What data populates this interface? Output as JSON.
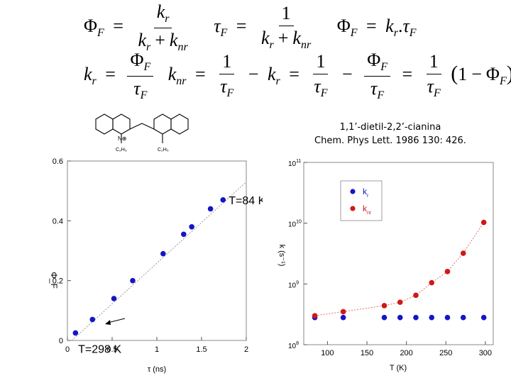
{
  "equations": {
    "phi_sym": "Φ",
    "tau_sym": "τ",
    "sub_F": "F",
    "k": "k",
    "sub_r": "r",
    "sub_nr": "nr",
    "one": "1",
    "eq": "=",
    "plus": "+",
    "minus": "−",
    "dot": ".",
    "open_paren": "(",
    "close_paren": ")"
  },
  "molecule": {
    "n_label": "N⊕",
    "left_sub": "C₂H₅",
    "right_sub": "C₂H₅"
  },
  "caption": {
    "line1": "1,1’-dietil-2,2’-cianina",
    "line2": "Chem. Phys Lett. 1986 130: 426."
  },
  "chart_data": [
    {
      "type": "scatter",
      "xlabel": "τ (ns)",
      "ylabel": "Φ_F",
      "xlim": [
        0,
        2
      ],
      "ylim": [
        0,
        0.6
      ],
      "xticks": [
        "0",
        "0.5",
        "1",
        "1.5",
        "2"
      ],
      "yticks": [
        "0",
        "0.2",
        "0.4",
        "0.6"
      ],
      "series": [
        {
          "color": "#1515c8",
          "x": [
            0.09,
            0.28,
            0.52,
            0.73,
            1.07,
            1.3,
            1.39,
            1.6,
            1.74
          ],
          "y": [
            0.025,
            0.07,
            0.14,
            0.2,
            0.29,
            0.355,
            0.38,
            0.44,
            0.47
          ]
        }
      ],
      "fit_line": {
        "x": [
          0.05,
          2.0
        ],
        "y": [
          0.0,
          0.53
        ]
      },
      "annotations": [
        "T=84 K",
        "T=298 K"
      ]
    },
    {
      "type": "scatter",
      "xlabel": "T (K)",
      "ylabel": "k (s⁻¹)",
      "ylog": true,
      "xlim": [
        70,
        310
      ],
      "ylim": [
        100000000,
        100000000000
      ],
      "xticks": [
        "100",
        "150",
        "200",
        "250",
        "300"
      ],
      "yticks": [
        {
          "base": "10",
          "exp": "8"
        },
        {
          "base": "10",
          "exp": "9"
        },
        {
          "base": "10",
          "exp": "10"
        },
        {
          "base": "10",
          "exp": "11"
        }
      ],
      "legend": {
        "position": "top-left"
      },
      "series": [
        {
          "name": "k_r",
          "legend_main": "k",
          "legend_sub": "r",
          "color": "#1515c8",
          "x": [
            84,
            120,
            172,
            192,
            212,
            232,
            252,
            272,
            298
          ],
          "y": [
            280000000,
            280000000,
            280000000,
            280000000,
            280000000,
            280000000,
            280000000,
            280000000,
            280000000
          ]
        },
        {
          "name": "k_nr",
          "legend_main": "k",
          "legend_sub": "nr",
          "color": "#d01818",
          "x": [
            84,
            120,
            172,
            192,
            212,
            232,
            252,
            272,
            298
          ],
          "y": [
            300000000,
            350000000,
            440000000,
            500000000,
            650000000,
            1050000000,
            1600000000,
            3200000000,
            10300000000
          ]
        }
      ]
    }
  ]
}
